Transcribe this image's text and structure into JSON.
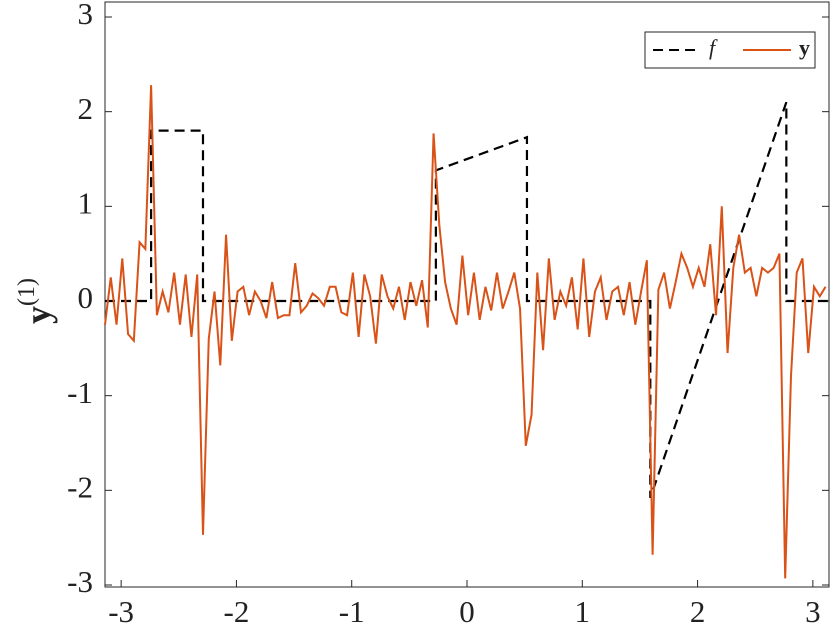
{
  "chart_data": {
    "type": "line",
    "ylabel": {
      "base": "y",
      "sup": "(1)"
    },
    "xlim": [
      -3.14,
      3.14
    ],
    "ylim": [
      -3,
      3
    ],
    "xticks": [
      -3,
      -2,
      -1,
      0,
      1,
      2,
      3
    ],
    "yticks": [
      -3,
      -2,
      -1,
      0,
      1,
      2,
      3
    ],
    "legend": "top-right",
    "series": [
      {
        "name": "f",
        "color": "#000000",
        "dash": true,
        "x": [
          -3.14,
          -2.74,
          -2.74,
          -2.29,
          -2.29,
          -0.27,
          -0.27,
          0.52,
          0.52,
          1.59,
          1.59,
          2.77,
          2.77,
          3.14
        ],
        "values": [
          0,
          0,
          1.8,
          1.8,
          0,
          0,
          1.38,
          1.73,
          0,
          0,
          -2.08,
          2.1,
          0,
          0
        ]
      },
      {
        "name": "y",
        "color": "#d95319",
        "dash": false,
        "x": [
          -3.14,
          -3.09,
          -3.04,
          -2.99,
          -2.94,
          -2.89,
          -2.84,
          -2.79,
          -2.74,
          -2.69,
          -2.64,
          -2.59,
          -2.54,
          -2.49,
          -2.44,
          -2.39,
          -2.34,
          -2.29,
          -2.24,
          -2.19,
          -2.14,
          -2.09,
          -2.04,
          -1.99,
          -1.94,
          -1.89,
          -1.84,
          -1.79,
          -1.74,
          -1.69,
          -1.64,
          -1.59,
          -1.54,
          -1.49,
          -1.44,
          -1.39,
          -1.34,
          -1.29,
          -1.24,
          -1.19,
          -1.14,
          -1.09,
          -1.04,
          -0.99,
          -0.94,
          -0.89,
          -0.84,
          -0.79,
          -0.74,
          -0.69,
          -0.64,
          -0.59,
          -0.54,
          -0.49,
          -0.44,
          -0.39,
          -0.34,
          -0.29,
          -0.24,
          -0.19,
          -0.14,
          -0.09,
          -0.04,
          0.01,
          0.06,
          0.11,
          0.16,
          0.21,
          0.26,
          0.31,
          0.36,
          0.41,
          0.46,
          0.51,
          0.56,
          0.61,
          0.66,
          0.71,
          0.76,
          0.81,
          0.86,
          0.91,
          0.96,
          1.01,
          1.06,
          1.11,
          1.16,
          1.21,
          1.26,
          1.31,
          1.36,
          1.41,
          1.46,
          1.51,
          1.56,
          1.61,
          1.66,
          1.71,
          1.76,
          1.81,
          1.86,
          1.91,
          1.96,
          2.01,
          2.06,
          2.11,
          2.16,
          2.21,
          2.26,
          2.31,
          2.36,
          2.41,
          2.46,
          2.51,
          2.56,
          2.61,
          2.66,
          2.71,
          2.76,
          2.81,
          2.86,
          2.91,
          2.96,
          3.01,
          3.06,
          3.11
        ],
        "values": [
          -0.25,
          0.25,
          -0.25,
          0.45,
          -0.35,
          -0.42,
          0.62,
          0.55,
          2.28,
          -0.15,
          0.1,
          -0.12,
          0.3,
          -0.25,
          0.28,
          -0.38,
          0.28,
          -2.47,
          -0.4,
          0.1,
          -0.68,
          0.7,
          -0.42,
          0.1,
          0.15,
          -0.15,
          0.1,
          0.0,
          -0.18,
          0.2,
          -0.18,
          -0.15,
          -0.15,
          0.4,
          -0.12,
          -0.05,
          0.08,
          0.03,
          -0.05,
          0.15,
          0.15,
          -0.12,
          -0.15,
          0.3,
          -0.38,
          0.28,
          0.05,
          -0.45,
          0.28,
          0.05,
          -0.08,
          0.15,
          -0.2,
          0.2,
          -0.05,
          0.22,
          -0.28,
          1.77,
          0.8,
          0.2,
          -0.08,
          -0.25,
          0.48,
          -0.15,
          0.3,
          -0.2,
          0.15,
          -0.1,
          0.3,
          -0.08,
          0.1,
          0.3,
          -0.08,
          -1.53,
          -1.2,
          0.3,
          -0.52,
          0.45,
          -0.2,
          0.1,
          -0.05,
          0.25,
          -0.3,
          0.45,
          -0.38,
          0.1,
          0.25,
          -0.2,
          0.1,
          0.15,
          -0.15,
          0.2,
          -0.25,
          0.1,
          0.43,
          -2.68,
          0.12,
          0.3,
          -0.08,
          0.2,
          0.5,
          0.35,
          0.15,
          0.35,
          0.15,
          0.6,
          -0.15,
          1.0,
          -0.55,
          0.35,
          0.7,
          0.3,
          0.35,
          0.05,
          0.35,
          0.3,
          0.35,
          0.5,
          -2.93,
          -0.8,
          0.3,
          0.45,
          -0.55,
          0.15,
          0.05,
          0.15
        ]
      }
    ]
  }
}
